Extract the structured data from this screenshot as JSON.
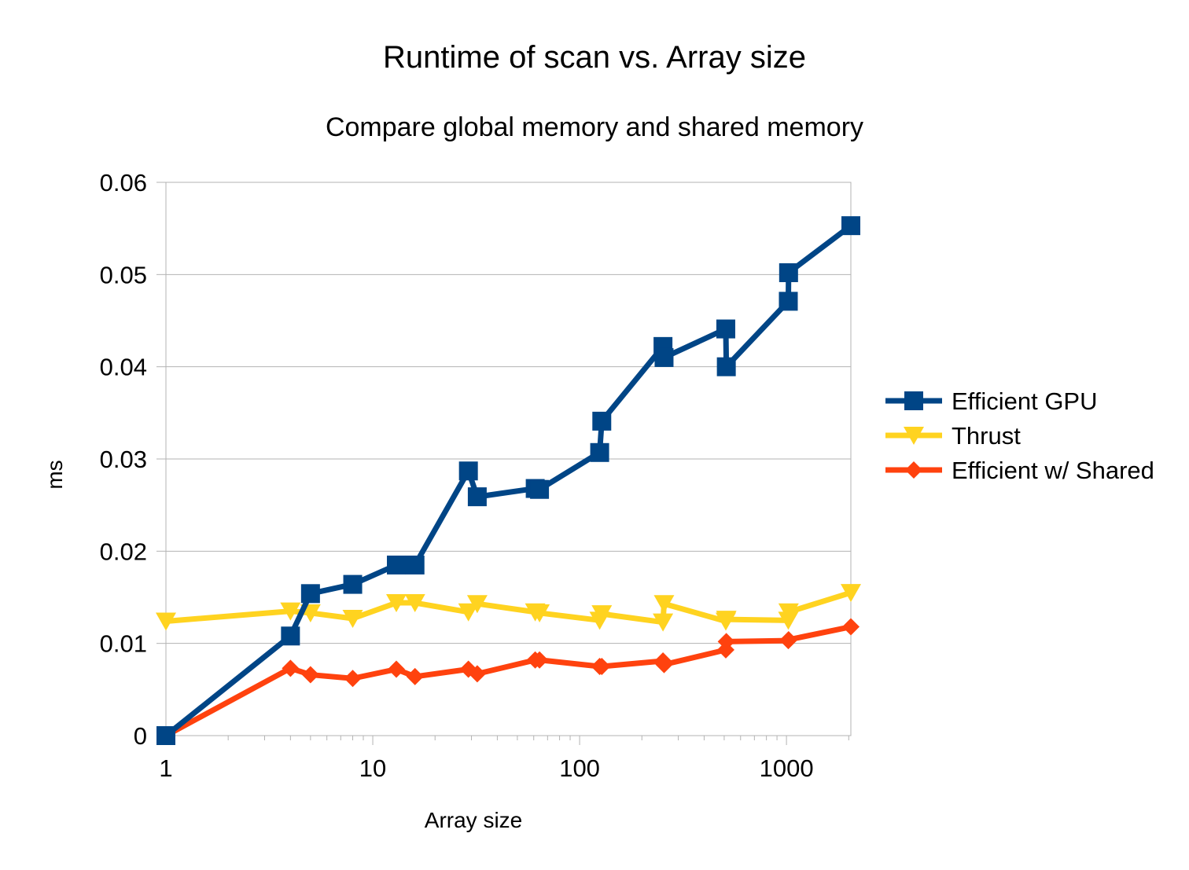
{
  "chart_data": {
    "type": "line",
    "title": "Runtime of scan vs. Array size",
    "subtitle": "Compare global memory and shared memory",
    "xlabel": "Array size",
    "ylabel": "ms",
    "x_scale": "log",
    "xlim": [
      1,
      2048
    ],
    "ylim": [
      0,
      0.06
    ],
    "x_ticks": [
      1,
      10,
      100,
      1000
    ],
    "x_tick_labels": [
      "1",
      "10",
      "100",
      "1000"
    ],
    "y_ticks": [
      0,
      0.01,
      0.02,
      0.03,
      0.04,
      0.05,
      0.06
    ],
    "y_tick_labels": [
      "0",
      "0.01",
      "0.02",
      "0.03",
      "0.04",
      "0.05",
      "0.06"
    ],
    "grid": "horizontal",
    "legend_position": "right",
    "x": [
      1,
      4,
      5,
      8,
      13,
      16,
      29,
      32,
      61,
      64,
      125,
      128,
      253,
      256,
      509,
      512,
      1021,
      1024,
      2048
    ],
    "series": [
      {
        "name": "Efficient GPU",
        "color": "#004586",
        "marker": "square",
        "values": [
          0,
          0.0108,
          0.0154,
          0.0164,
          0.0185,
          0.0185,
          0.0287,
          0.0259,
          0.0268,
          0.0267,
          0.0307,
          0.0341,
          0.0422,
          0.041,
          0.0441,
          0.04,
          0.0471,
          0.0502,
          0.0553
        ]
      },
      {
        "name": "Thrust",
        "color": "#ffd320",
        "marker": "triangle-down",
        "values": [
          0.0124,
          0.0135,
          0.0133,
          0.0127,
          0.0144,
          0.0144,
          0.0134,
          0.0143,
          0.0134,
          0.0133,
          0.0125,
          0.0132,
          0.0123,
          0.0143,
          0.0124,
          0.0126,
          0.0125,
          0.0134,
          0.0155
        ]
      },
      {
        "name": "Efficient w/ Shared",
        "color": "#ff420e",
        "marker": "diamond",
        "values": [
          0,
          0.0073,
          0.0066,
          0.0062,
          0.0072,
          0.0064,
          0.0072,
          0.0067,
          0.0082,
          0.0082,
          0.0075,
          0.0075,
          0.0081,
          0.0077,
          0.0093,
          0.0102,
          0.0103,
          0.0104,
          0.0118
        ]
      }
    ]
  }
}
